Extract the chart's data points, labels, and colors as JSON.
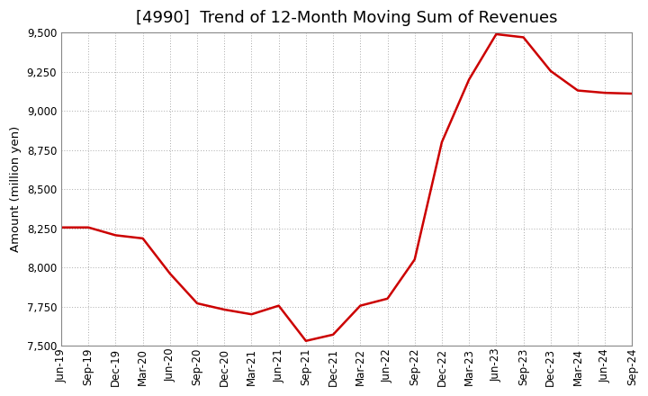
{
  "title": "[4990]  Trend of 12-Month Moving Sum of Revenues",
  "ylabel": "Amount (million yen)",
  "line_color": "#cc0000",
  "background_color": "#ffffff",
  "plot_bg_color": "#ffffff",
  "grid_color": "#aaaaaa",
  "ylim": [
    7500,
    9500
  ],
  "yticks": [
    7500,
    7750,
    8000,
    8250,
    8500,
    8750,
    9000,
    9250,
    9500
  ],
  "x_labels": [
    "Jun-19",
    "Sep-19",
    "Dec-19",
    "Mar-20",
    "Jun-20",
    "Sep-20",
    "Dec-20",
    "Mar-21",
    "Jun-21",
    "Sep-21",
    "Dec-21",
    "Mar-22",
    "Jun-22",
    "Sep-22",
    "Dec-22",
    "Mar-23",
    "Jun-23",
    "Sep-23",
    "Dec-23",
    "Mar-24",
    "Jun-24",
    "Sep-24"
  ],
  "y_values": [
    8255,
    8255,
    8205,
    8185,
    7960,
    7770,
    7730,
    7700,
    7755,
    7530,
    7570,
    7755,
    7800,
    8050,
    8800,
    9200,
    9490,
    9470,
    9255,
    9130,
    9115,
    9110
  ],
  "title_fontsize": 13,
  "tick_fontsize": 8.5,
  "ylabel_fontsize": 9.5,
  "linewidth": 1.8
}
